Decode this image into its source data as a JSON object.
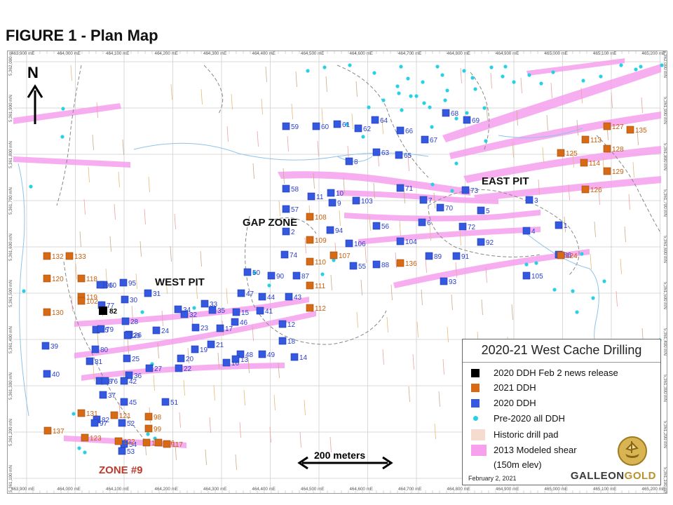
{
  "title": "FIGURE 1 - Plan Map",
  "colors": {
    "ddh_2020_news": "#000000",
    "ddh_2021": "#d86a14",
    "ddh_2020": "#3558e0",
    "pre_2020": "#28d0e6",
    "historic_pad": "#f6dcd0",
    "shear": "#f6a0ee"
  },
  "map": {
    "easting_labels": [
      "463,900 mE",
      "464,000 mE",
      "464,100 mE",
      "464,200 mE",
      "464,300 mE",
      "464,400 mE",
      "464,500 mE",
      "464,600 mE",
      "464,700 mE",
      "464,800 mE",
      "464,900 mE",
      "465,000 mE",
      "465,100 mE",
      "465,200 mE",
      "465,300"
    ],
    "northing_labels": [
      "5,362,000 mN",
      "5,361,900 mN",
      "5,361,800 mN",
      "5,361,700 mN",
      "5,361,600 mN",
      "5,361,500 mN",
      "5,361,400 mN",
      "5,361,300 mN",
      "5,361,200 mN",
      "5,361,100 mN"
    ],
    "north_label": "N",
    "scale_label": "200 meters",
    "area_labels": [
      {
        "text": "EAST PIT",
        "color": "#111"
      },
      {
        "text": "GAP ZONE",
        "color": "#111"
      },
      {
        "text": "WEST PIT",
        "color": "#111"
      },
      {
        "text": "ZONE #9",
        "color": "#c0392b"
      }
    ],
    "holes_2020": [
      "10",
      "59",
      "60",
      "61",
      "62",
      "64",
      "66",
      "67",
      "68",
      "69",
      "63",
      "65",
      "8",
      "58",
      "11",
      "10",
      "9",
      "103",
      "71",
      "73",
      "7",
      "70",
      "5",
      "3",
      "57",
      "6",
      "72",
      "1",
      "2",
      "56",
      "94",
      "106",
      "104",
      "92",
      "4",
      "89",
      "91",
      "86",
      "74",
      "88",
      "55",
      "93",
      "105",
      "87",
      "90",
      "50",
      "47",
      "44",
      "43",
      "41",
      "15",
      "12",
      "46",
      "18",
      "14",
      "49",
      "48",
      "13",
      "16",
      "17",
      "21",
      "19",
      "20",
      "22",
      "23",
      "24",
      "26",
      "25",
      "27",
      "28",
      "29",
      "30",
      "31",
      "32",
      "33",
      "34",
      "35",
      "36",
      "38",
      "39",
      "40",
      "42",
      "45",
      "51",
      "52",
      "54",
      "53",
      "37",
      "76",
      "75",
      "77",
      "79",
      "80",
      "81",
      "82",
      "95",
      "96",
      "97",
      "100",
      "101",
      "78"
    ],
    "holes_2021": [
      "132",
      "133",
      "120",
      "118",
      "119",
      "130",
      "102",
      "108",
      "109",
      "110",
      "107",
      "136",
      "111",
      "112",
      "113",
      "125",
      "114",
      "126",
      "124",
      "127",
      "135",
      "128",
      "129",
      "131",
      "121",
      "98",
      "99",
      "137",
      "123",
      "122",
      "115",
      "116",
      "117"
    ],
    "hole_2020_news": "82"
  },
  "legend": {
    "title": "2020-21 West Cache Drilling",
    "items": [
      {
        "label": "2020 DDH Feb 2 news release",
        "kind": "square",
        "color": "#000000"
      },
      {
        "label": "2021 DDH",
        "kind": "square",
        "color": "#d86a14"
      },
      {
        "label": "2020 DDH",
        "kind": "square",
        "color": "#3558e0"
      },
      {
        "label": "Pre-2020 all DDH",
        "kind": "dot",
        "color": "#28d0e6"
      },
      {
        "label": "Historic drill pad",
        "kind": "pad",
        "color": "#f6dcd0"
      },
      {
        "label": "2013 Modeled shear",
        "kind": "shear",
        "color": "#f6a0ee"
      },
      {
        "label": "(150m elev)",
        "kind": "none",
        "color": ""
      }
    ],
    "date": "February 2, 2021",
    "brand_a": "GALLEON",
    "brand_b": "GOLD"
  }
}
